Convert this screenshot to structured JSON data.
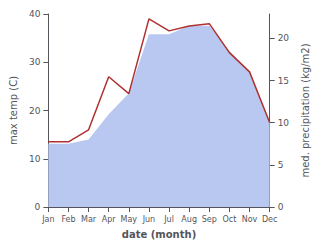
{
  "chart_data": {
    "type": "line",
    "xlabel": "date (month)",
    "ylabel": "max temp (C)",
    "y2label": "med. precipitation (kg/m2)",
    "categories": [
      "Jan",
      "Feb",
      "Mar",
      "Apr",
      "May",
      "Jun",
      "Jul",
      "Aug",
      "Sep",
      "Oct",
      "Nov",
      "Dec"
    ],
    "series": [
      {
        "type": "area",
        "color": "#b8c8f0",
        "axis": "y2",
        "values": [
          7.5,
          7.5,
          8.0,
          11.0,
          13.5,
          20.5,
          20.5,
          21.5,
          21.5,
          18.5,
          16.0,
          10.0
        ]
      },
      {
        "type": "line",
        "color": "#b03030",
        "values": [
          13.5,
          13.5,
          16.0,
          27.0,
          23.5,
          39.0,
          36.5,
          37.5,
          38.0,
          32.0,
          28.0,
          17.5
        ]
      }
    ],
    "ylim": [
      0,
      40
    ],
    "yticks": [
      0,
      10,
      20,
      30,
      40
    ],
    "y2lim": [
      0,
      22.9
    ],
    "y2ticks": [
      0,
      5,
      10,
      15,
      20
    ],
    "grid": false
  }
}
